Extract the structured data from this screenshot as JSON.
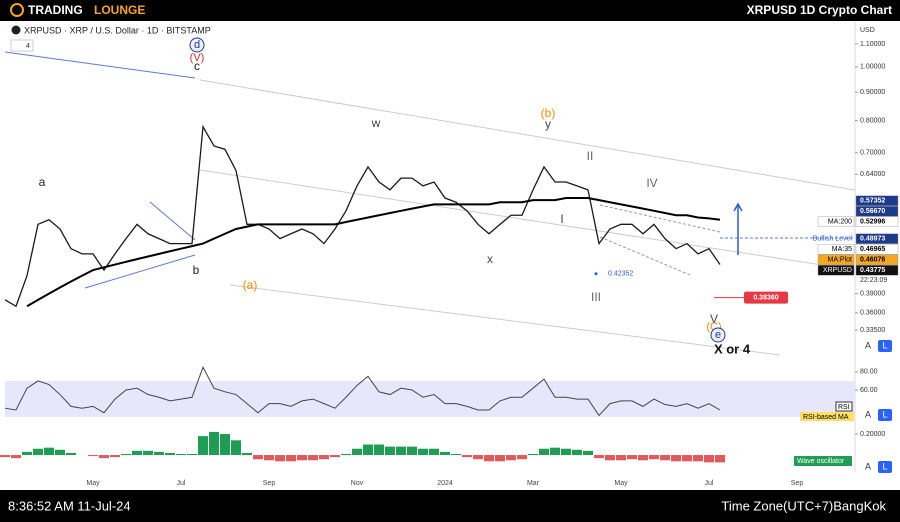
{
  "header": {
    "logo_left": "TRADING",
    "logo_right": "LOUNGE",
    "title": "XRPUSD 1D Crypto Chart"
  },
  "symbol": "XRPUSD · XRP / U.S. Dollar · 1D · BITSTAMP",
  "indicator_count": "4",
  "currency": "USD",
  "footer": {
    "time": "8:36:52 AM 11-Jul-24",
    "timezone": "Time Zone(UTC+7)BangKok"
  },
  "buttons": [
    "A",
    "L"
  ],
  "chart_data": [
    {
      "type": "line",
      "log_scale": true,
      "categories": [
        null,
        null,
        null,
        null,
        null,
        null,
        null,
        null,
        "May",
        null,
        null,
        null,
        null,
        null,
        null,
        null,
        "Jul",
        null,
        null,
        null,
        null,
        null,
        null,
        null,
        "Sep",
        null,
        null,
        null,
        null,
        null,
        null,
        null,
        "Nov",
        null,
        null,
        null,
        null,
        null,
        null,
        null,
        "2024",
        null,
        null,
        null,
        null,
        null,
        null,
        null,
        "Mar",
        null,
        null,
        null,
        null,
        null,
        null,
        null,
        "May",
        null,
        null,
        null,
        null,
        null,
        null,
        null,
        "Jul",
        null,
        null,
        null,
        null,
        null,
        null,
        null,
        "Sep"
      ],
      "series": [
        {
          "color": "#1a1a1a",
          "width": 1.3,
          "values": [
            0.38,
            0.37,
            0.42,
            0.52,
            0.53,
            0.51,
            0.47,
            0.46,
            0.46,
            0.43,
            0.46,
            0.49,
            0.52,
            0.5,
            0.49,
            0.48,
            0.48,
            0.48,
            0.78,
            0.72,
            0.71,
            0.65,
            0.52,
            0.52,
            0.51,
            0.49,
            0.5,
            0.51,
            0.5,
            0.48,
            0.51,
            0.55,
            0.61,
            0.66,
            0.62,
            0.6,
            0.63,
            0.63,
            0.61,
            0.62,
            0.58,
            0.57,
            0.55,
            0.52,
            0.5,
            0.52,
            0.54,
            0.54,
            0.6,
            0.66,
            0.62,
            0.62,
            0.61,
            0.6,
            0.48,
            0.51,
            0.52,
            0.52,
            0.5,
            0.52,
            0.49,
            0.47,
            0.48,
            0.46,
            0.47,
            0.44,
            null,
            null,
            null,
            null,
            null,
            null,
            null
          ]
        },
        {
          "color": "#000000",
          "width": 2,
          "values": [
            null,
            null,
            0.37,
            0.38,
            0.39,
            0.4,
            0.41,
            0.42,
            0.43,
            0.435,
            0.44,
            0.445,
            0.45,
            0.455,
            0.46,
            0.465,
            0.47,
            0.475,
            0.48,
            0.49,
            0.5,
            0.51,
            0.515,
            0.52,
            0.52,
            0.52,
            0.52,
            0.52,
            0.52,
            0.52,
            0.52,
            0.525,
            0.53,
            0.535,
            0.54,
            0.545,
            0.55,
            0.555,
            0.56,
            0.565,
            0.565,
            0.565,
            0.565,
            0.565,
            0.565,
            0.57,
            0.57,
            0.57,
            0.575,
            0.575,
            0.575,
            0.58,
            0.58,
            0.58,
            0.575,
            0.57,
            0.565,
            0.56,
            0.555,
            0.55,
            0.545,
            0.54,
            0.54,
            0.535,
            0.533,
            0.53,
            null,
            null,
            null,
            null,
            null,
            null,
            null
          ]
        }
      ],
      "ylim": [
        0.315,
        1.205
      ],
      "yticks": [
        {
          "value": 1.1,
          "label": "1.10000"
        },
        {
          "value": 1,
          "label": "1.00000"
        },
        {
          "value": 0.9,
          "label": "0.90000"
        },
        {
          "value": 0.8,
          "label": "0.80000"
        },
        {
          "value": 0.7,
          "label": "0.70000"
        },
        {
          "value": 0.64,
          "label": "0.64000"
        },
        {
          "value": 0.39,
          "label": "0.39000"
        },
        {
          "value": 0.36,
          "label": "0.36000"
        },
        {
          "value": 0.335,
          "label": "0.33500"
        }
      ],
      "markers": [
        {
          "value": 0.57352,
          "label": "0.57352",
          "color": "#1e3a8a",
          "text_color": "#ffffff"
        },
        {
          "value": 0.5667,
          "label": "0.56670",
          "color": "#1e3a8a",
          "text_color": "#ffffff"
        },
        {
          "name": "MA:200",
          "value": 0.52996,
          "label": "0.52996",
          "color": "#ffffff",
          "text_color": "#000000"
        },
        {
          "name": "Bullish Level",
          "value": 0.48973,
          "label": "0.48973",
          "color": "#1e3a8a",
          "text_color": "#ffffff"
        },
        {
          "name": "MA:35",
          "value": 0.46965,
          "label": "0.46965",
          "color": "#ffffff",
          "text_color": "#000000"
        },
        {
          "name": "MA:Plot",
          "value": 0.46076,
          "label": "0.46076",
          "color": "#f5a623",
          "text_color": "#000000"
        },
        {
          "name": "XRPUSD",
          "value": 0.43775,
          "label": "0.43775",
          "color": "#111111",
          "text_color": "#ffffff"
        }
      ],
      "countdown": "22:23:09",
      "annotations": [
        {
          "value": 0.42352,
          "label": "0.42352"
        },
        {
          "value": 0.3836,
          "label": "0.38360"
        }
      ],
      "wave_labels": [
        "d",
        "(V)",
        "c",
        "a",
        "b",
        "(a)",
        "w",
        "x",
        "(b)",
        "y",
        "II",
        "I",
        "IV",
        "III",
        "V",
        "(C)",
        "e",
        "X or 4"
      ]
    },
    {
      "type": "line",
      "name": "RSI",
      "ma_name": "RSI-based MA",
      "series": [
        {
          "color": "#444444",
          "width": 1,
          "values": [
            40,
            38,
            62,
            70,
            66,
            55,
            42,
            40,
            42,
            35,
            50,
            60,
            62,
            55,
            52,
            48,
            50,
            52,
            85,
            62,
            58,
            55,
            45,
            35,
            45,
            45,
            42,
            48,
            50,
            45,
            40,
            52,
            65,
            75,
            58,
            55,
            62,
            60,
            52,
            55,
            45,
            45,
            42,
            38,
            38,
            48,
            52,
            52,
            62,
            72,
            52,
            52,
            50,
            50,
            32,
            45,
            48,
            48,
            42,
            50,
            44,
            42,
            45,
            40,
            45,
            38,
            null,
            null,
            null,
            null,
            null,
            null,
            null
          ]
        }
      ],
      "ylim": [
        27,
        93
      ],
      "yticks": [
        {
          "value": 80,
          "label": "80.00"
        },
        {
          "value": 60,
          "label": "60.00"
        }
      ]
    },
    {
      "type": "bar",
      "name": "Wave oscillator",
      "up_color": "#1f9d55",
      "down_color": "#e05a5a",
      "values": [
        -0.02,
        -0.03,
        0.03,
        0.06,
        0.07,
        0.05,
        0.02,
        0.0,
        -0.01,
        -0.03,
        -0.02,
        0.01,
        0.04,
        0.04,
        0.03,
        0.02,
        0.01,
        0.01,
        0.18,
        0.22,
        0.2,
        0.14,
        0.02,
        -0.04,
        -0.05,
        -0.06,
        -0.06,
        -0.05,
        -0.05,
        -0.04,
        -0.02,
        0.01,
        0.06,
        0.1,
        0.1,
        0.08,
        0.08,
        0.08,
        0.06,
        0.06,
        0.03,
        0.01,
        -0.02,
        -0.04,
        -0.06,
        -0.06,
        -0.05,
        -0.04,
        0.01,
        0.06,
        0.07,
        0.06,
        0.05,
        0.04,
        -0.03,
        -0.05,
        -0.05,
        -0.04,
        -0.05,
        -0.04,
        -0.05,
        -0.06,
        -0.06,
        -0.06,
        -0.07,
        -0.07,
        null,
        null,
        null,
        null,
        null,
        null,
        null
      ],
      "ylim": [
        -0.095,
        0.286
      ],
      "yticks": [
        {
          "value": 0.2,
          "label": "0.20000"
        }
      ]
    }
  ]
}
